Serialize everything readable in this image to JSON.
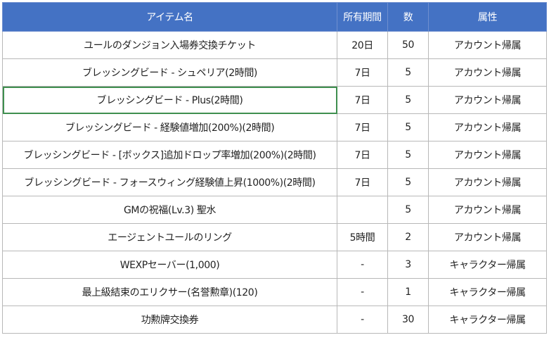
{
  "table": {
    "headers": [
      "アイテム名",
      "所有期間",
      "数",
      "属性"
    ],
    "rows": [
      [
        "ユールのダンジョン入場券交換チケット",
        "20日",
        "50",
        "アカウント帰属"
      ],
      [
        "ブレッシングビード - シュペリア(2時間)",
        "7日",
        "5",
        "アカウント帰属"
      ],
      [
        "ブレッシングビード - Plus(2時間)",
        "7日",
        "5",
        "アカウント帰属"
      ],
      [
        "ブレッシングビード - 経験値増加(200%)(2時間)",
        "7日",
        "5",
        "アカウント帰属"
      ],
      [
        "ブレッシングビード - [ボックス]追加ドロップ率増加(200%)(2時間)",
        "7日",
        "5",
        "アカウント帰属"
      ],
      [
        "ブレッシングビード - フォースウィング経験値上昇(1000%)(2時間)",
        "7日",
        "5",
        "アカウント帰属"
      ],
      [
        "GMの祝福(Lv.3) 聖水",
        "",
        "5",
        "アカウント帰属"
      ],
      [
        "エージェントユールのリング",
        "5時間",
        "2",
        "アカウント帰属"
      ],
      [
        "WEXPセーバー(1,000)",
        "-",
        "3",
        "キャラクター帰属"
      ],
      [
        "最上級結束のエリクサー(名誉勲章)(120)",
        "-",
        "1",
        "キャラクター帰属"
      ],
      [
        "功勲牌交換券",
        "-",
        "30",
        "キャラクター帰属"
      ]
    ]
  },
  "colors": {
    "header_background": "#4472c4",
    "header_text": "#ffffff",
    "selection_border": "#3f8f4f"
  }
}
